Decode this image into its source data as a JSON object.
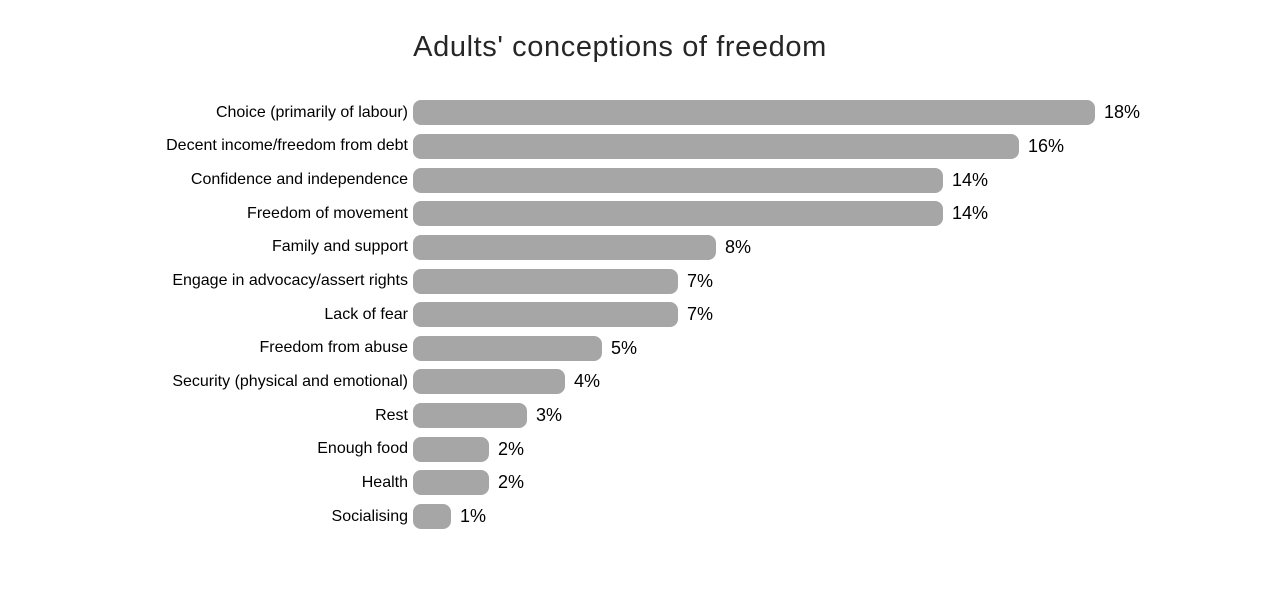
{
  "chart_data": {
    "type": "bar",
    "orientation": "horizontal",
    "title": "Adults' conceptions of freedom",
    "categories": [
      "Choice (primarily of labour)",
      "Decent income/freedom from debt",
      "Confidence and independence",
      "Freedom of movement",
      "Family and support",
      "Engage in advocacy/assert rights",
      "Lack of fear",
      "Freedom from abuse",
      "Security (physical and emotional)",
      "Rest",
      "Enough food",
      "Health",
      "Socialising"
    ],
    "values": [
      18,
      16,
      14,
      14,
      8,
      7,
      7,
      5,
      4,
      3,
      2,
      2,
      1
    ],
    "value_labels": [
      "18%",
      "16%",
      "14%",
      "14%",
      "8%",
      "7%",
      "7%",
      "5%",
      "4%",
      "3%",
      "2%",
      "2%",
      "1%"
    ],
    "value_suffix": "%",
    "xlim": [
      0,
      18
    ],
    "xlabel": "",
    "ylabel": "",
    "grid": false,
    "legend": false,
    "bar_color": "#a6a6a6",
    "title_color": "#262626",
    "label_color": "#000000",
    "background_color": "#ffffff"
  }
}
